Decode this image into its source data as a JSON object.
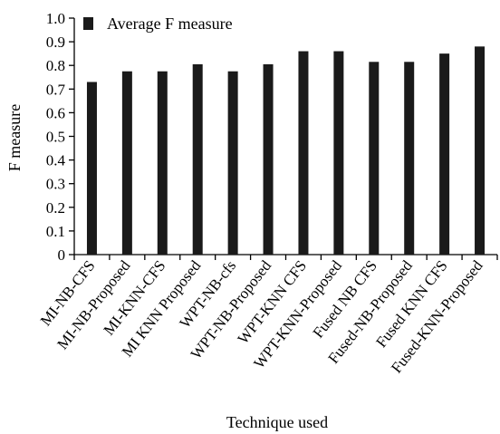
{
  "chart_data": {
    "type": "bar",
    "xlabel": "Technique used",
    "ylabel": "F  measure",
    "ylim": [
      0,
      1.0
    ],
    "yticks": [
      "0",
      "0.1",
      "0.2",
      "0.3",
      "0.4",
      "0.5",
      "0.6",
      "0.7",
      "0.8",
      "0.9",
      "1.0"
    ],
    "grid": false,
    "legend_position": "top-left",
    "bar_color": "#1a1a1a",
    "categories": [
      "MI-NB-CFS",
      "MI-NB-Proposed",
      "MI-KNN-CFS",
      "MI KNN Proposed",
      "WPT-NB-cfs",
      "WPT-NB-Proposed",
      "WPT-KNN CFS",
      "WPT-KNN-Proposed",
      "Fused NB CFS",
      "Fused-NB-Proposed",
      "Fused KNN CFS",
      "Fused-KNN-Proposed"
    ],
    "series": [
      {
        "name": "Average F measure",
        "values": [
          0.73,
          0.775,
          0.775,
          0.805,
          0.775,
          0.805,
          0.86,
          0.86,
          0.815,
          0.815,
          0.85,
          0.88
        ]
      }
    ]
  }
}
